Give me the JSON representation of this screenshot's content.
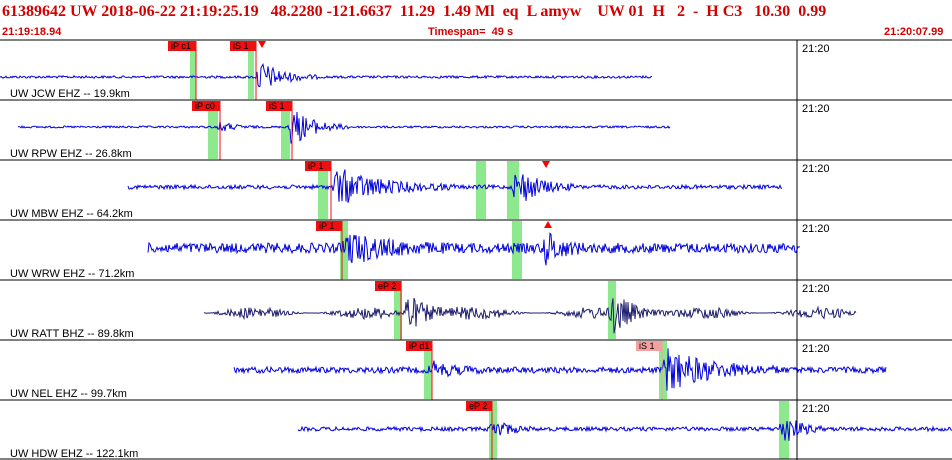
{
  "header": {
    "event_line": "61389642 UW 2018-06-22 21:19:25.19   48.2280 -121.6637  11.29  1.49 Ml  eq  L amyw    UW 01  H   2  -  H C3   10.30  0.99",
    "start_time": "21:19:18.94",
    "timespan": "Timespan=  49 s",
    "end_time": "21:20:07.99"
  },
  "minute_label": "21:20",
  "colors": {
    "header_text": "#d40000",
    "trace_blue": "#0000dd",
    "trace_navy": "#1e1e6e",
    "pick_red": "#ee1010",
    "pick_pink": "#f4a0a0",
    "window_green": "#8ee88e",
    "marker_red": "#ff0000"
  },
  "channels": [
    {
      "label": "UW JCW EHZ -- 19.9km",
      "color": "blue",
      "picks": [
        {
          "text": "iP c1",
          "style": "red"
        },
        {
          "text": "iS 1",
          "style": "red"
        }
      ],
      "markers": [
        "down"
      ]
    },
    {
      "label": "UW RPW EHZ -- 26.8km",
      "color": "blue",
      "picks": [
        {
          "text": "iP c0",
          "style": "red"
        },
        {
          "text": "iS 1",
          "style": "red"
        }
      ],
      "markers": []
    },
    {
      "label": "UW MBW EHZ -- 64.2km",
      "color": "blue",
      "picks": [
        {
          "text": "iP 1",
          "style": "red"
        }
      ],
      "markers": [
        "down"
      ]
    },
    {
      "label": "UW WRW EHZ -- 71.2km",
      "color": "blue",
      "picks": [
        {
          "text": "iP 1",
          "style": "red"
        }
      ],
      "markers": [
        "up"
      ]
    },
    {
      "label": "UW RATT BHZ -- 89.8km",
      "color": "navy",
      "picks": [
        {
          "text": "eP 2",
          "style": "red"
        }
      ],
      "markers": []
    },
    {
      "label": "UW NEL EHZ -- 99.7km",
      "color": "blue",
      "picks": [
        {
          "text": "iP d1",
          "style": "red"
        },
        {
          "text": "iS 1",
          "style": "pink"
        }
      ],
      "markers": []
    },
    {
      "label": "UW HDW EHZ -- 122.1km",
      "color": "blue",
      "picks": [
        {
          "text": "eP 2",
          "style": "red"
        }
      ],
      "markers": []
    }
  ]
}
